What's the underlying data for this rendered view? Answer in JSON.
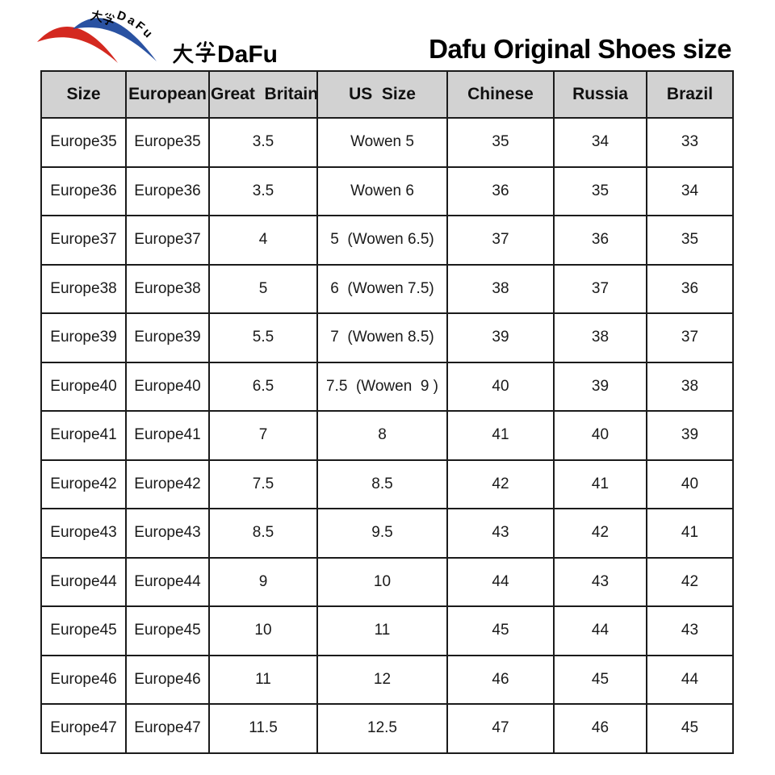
{
  "logo": {
    "curved_text": "大孚DaFu",
    "curved_text_latin": "DaFu",
    "brand_text": "大孚DaFu",
    "brand_text_latin": "DaFu",
    "red": "#d42920",
    "blue": "#2a52a2"
  },
  "title": "Dafu Original Shoes size",
  "table_style": {
    "header_bg": "#d2d2d2",
    "border_color": "#1b1b1b"
  },
  "chart_data": {
    "type": "table",
    "title": "Dafu Original Shoes size",
    "columns": [
      "Size",
      "European",
      "Great  Britain",
      "US  Size",
      "Chinese",
      "Russia",
      "Brazil"
    ],
    "rows": [
      [
        "Europe35",
        "Europe35",
        "3.5",
        "Wowen 5",
        "35",
        "34",
        "33"
      ],
      [
        "Europe36",
        "Europe36",
        "3.5",
        "Wowen 6",
        "36",
        "35",
        "34"
      ],
      [
        "Europe37",
        "Europe37",
        "4",
        "5  (Wowen 6.5)",
        "37",
        "36",
        "35"
      ],
      [
        "Europe38",
        "Europe38",
        "5",
        "6  (Wowen 7.5)",
        "38",
        "37",
        "36"
      ],
      [
        "Europe39",
        "Europe39",
        "5.5",
        "7  (Wowen 8.5)",
        "39",
        "38",
        "37"
      ],
      [
        "Europe40",
        "Europe40",
        "6.5",
        "7.5  (Wowen  9 )",
        "40",
        "39",
        "38"
      ],
      [
        "Europe41",
        "Europe41",
        "7",
        "8",
        "41",
        "40",
        "39"
      ],
      [
        "Europe42",
        "Europe42",
        "7.5",
        "8.5",
        "42",
        "41",
        "40"
      ],
      [
        "Europe43",
        "Europe43",
        "8.5",
        "9.5",
        "43",
        "42",
        "41"
      ],
      [
        "Europe44",
        "Europe44",
        "9",
        "10",
        "44",
        "43",
        "42"
      ],
      [
        "Europe45",
        "Europe45",
        "10",
        "11",
        "45",
        "44",
        "43"
      ],
      [
        "Europe46",
        "Europe46",
        "11",
        "12",
        "46",
        "45",
        "44"
      ],
      [
        "Europe47",
        "Europe47",
        "11.5",
        "12.5",
        "47",
        "46",
        "45"
      ]
    ]
  }
}
